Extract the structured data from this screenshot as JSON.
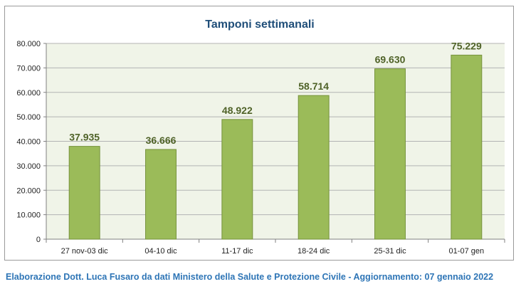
{
  "chart_data": {
    "type": "bar",
    "title": "Tamponi settimanali",
    "categories": [
      "27 nov-03 dic",
      "04-10 dic",
      "11-17 dic",
      "18-24 dic",
      "25-31 dic",
      "01-07 gen"
    ],
    "values": [
      37935,
      36666,
      48922,
      58714,
      69630,
      75229
    ],
    "value_labels": [
      "37.935",
      "36.666",
      "48.922",
      "58.714",
      "69.630",
      "75.229"
    ],
    "y_ticks": [
      0,
      10000,
      20000,
      30000,
      40000,
      50000,
      60000,
      70000,
      80000
    ],
    "y_tick_labels": [
      "0",
      "10.000",
      "20.000",
      "30.000",
      "40.000",
      "50.000",
      "60.000",
      "70.000",
      "80.000"
    ],
    "ylim": [
      0,
      80000
    ],
    "grid": true,
    "legend": "none",
    "colors": {
      "bar": "#9bbb59",
      "bar_border": "#76923c",
      "plot_bg": "#f0f4e8",
      "label": "#4f6228",
      "title": "#1f4e79"
    }
  },
  "footer": "Elaborazione Dott. Luca Fusaro da dati Ministero della Salute e Protezione Civile - Aggiornamento: 07 gennaio 2022"
}
